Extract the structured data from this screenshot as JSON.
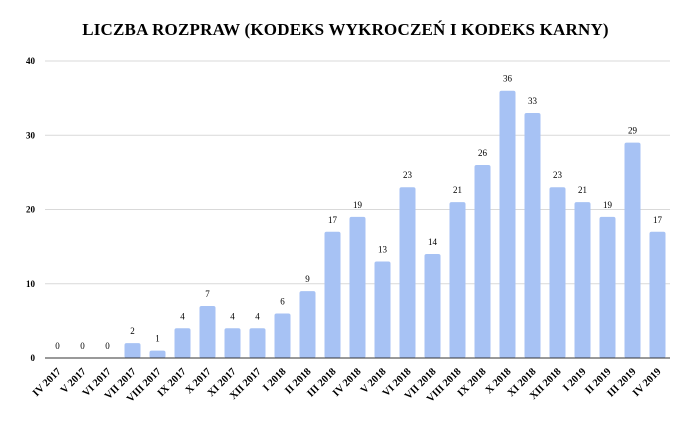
{
  "chart_data": {
    "type": "bar",
    "title": "LICZBA ROZPRAW (KODEKS WYKROCZEŃ I KODEKS KARNY)",
    "xlabel": "",
    "ylabel": "",
    "categories": [
      "IV 2017",
      "V 2017",
      "VI 2017",
      "VII 2017",
      "VIII 2017",
      "IX 2017",
      "X 2017",
      "XI 2017",
      "XII 2017",
      "I 2018",
      "II 2018",
      "III 2018",
      "IV 2018",
      "V 2018",
      "VI 2018",
      "VII 2018",
      "VIII 2018",
      "IX 2018",
      "X 2018",
      "XI 2018",
      "XII 2018",
      "I 2019",
      "II 2019",
      "III 2019",
      "IV 2019"
    ],
    "values": [
      0,
      0,
      0,
      2,
      1,
      4,
      7,
      4,
      4,
      6,
      9,
      17,
      19,
      13,
      23,
      14,
      21,
      26,
      36,
      33,
      23,
      21,
      19,
      29,
      17
    ],
    "ylim": [
      0,
      40
    ],
    "yticks": [
      0,
      10,
      20,
      30,
      40
    ],
    "grid": true,
    "legend": "none",
    "bar_color": "#a7c2f4",
    "grid_color": "#d9d9d9"
  }
}
